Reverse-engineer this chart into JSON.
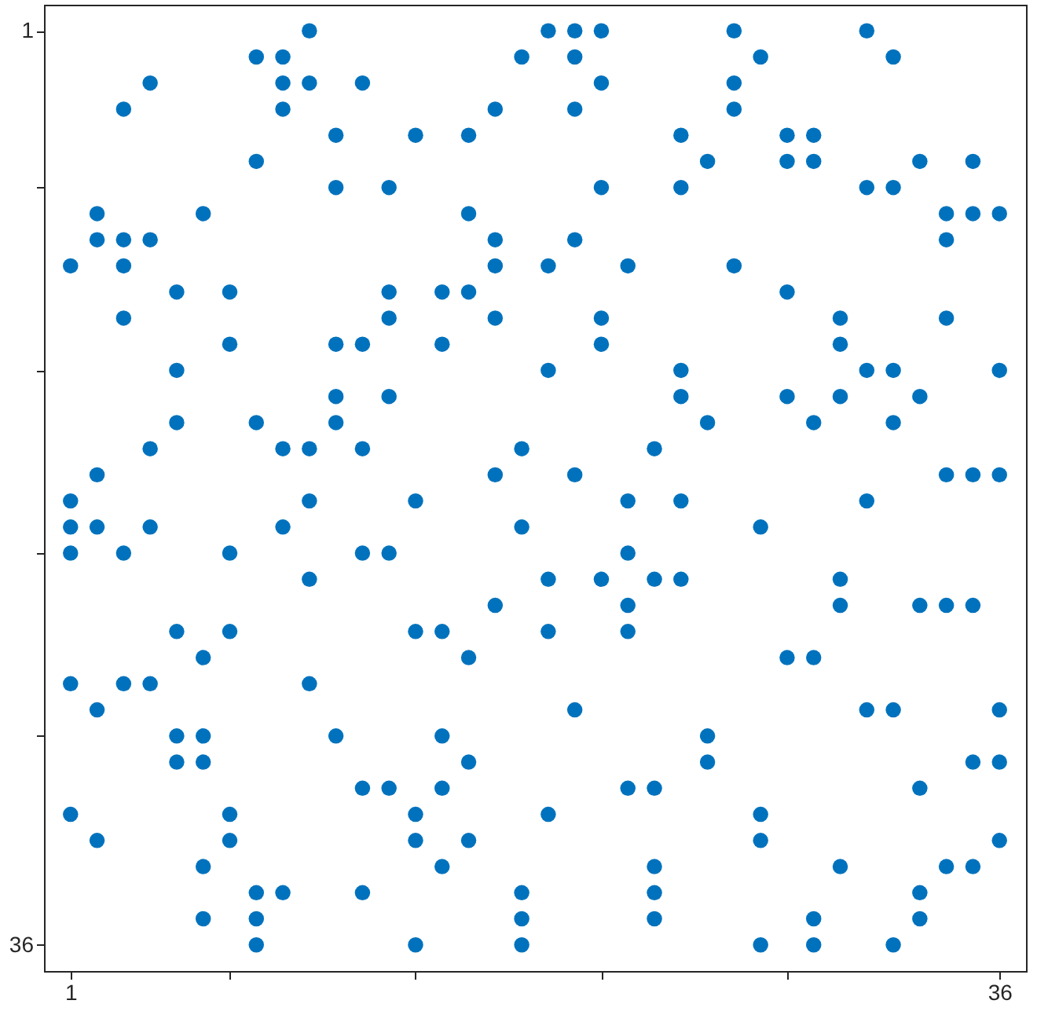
{
  "chart_data": {
    "type": "scatter",
    "marker": "circle",
    "grid": false,
    "xlim": [
      0,
      37
    ],
    "ylim": [
      37,
      0
    ],
    "xticks": [
      1,
      {
        "value": 7,
        "label": null
      },
      {
        "value": 14,
        "label": null
      },
      {
        "value": 21,
        "label": null
      },
      {
        "value": 28,
        "label": null
      },
      36
    ],
    "yticks": [
      1,
      {
        "value": 7,
        "label": null
      },
      {
        "value": 14,
        "label": null
      },
      {
        "value": 21,
        "label": null
      },
      {
        "value": 28,
        "label": null
      },
      36
    ],
    "series": [
      {
        "color": "#0072bd",
        "x": [
          10,
          19,
          20,
          21,
          26,
          31,
          8,
          9,
          18,
          20,
          27,
          32,
          4,
          9,
          10,
          12,
          21,
          26,
          3,
          9,
          17,
          20,
          26,
          11,
          14,
          16,
          24,
          28,
          29,
          8,
          25,
          28,
          29,
          33,
          35,
          11,
          13,
          21,
          24,
          31,
          32,
          2,
          6,
          16,
          34,
          35,
          36,
          2,
          3,
          4,
          17,
          20,
          34,
          1,
          3,
          17,
          19,
          22,
          26,
          5,
          7,
          13,
          15,
          16,
          28,
          3,
          13,
          17,
          21,
          30,
          34,
          7,
          11,
          12,
          15,
          21,
          30,
          5,
          19,
          24,
          31,
          32,
          36,
          11,
          13,
          24,
          28,
          30,
          33,
          5,
          8,
          11,
          25,
          29,
          32,
          4,
          9,
          10,
          12,
          18,
          23,
          2,
          17,
          20,
          34,
          35,
          36,
          1,
          10,
          14,
          22,
          24,
          31,
          1,
          2,
          4,
          9,
          18,
          27,
          1,
          3,
          7,
          12,
          13,
          22,
          10,
          19,
          21,
          23,
          24,
          30,
          17,
          22,
          30,
          33,
          34,
          35,
          5,
          7,
          14,
          15,
          19,
          22,
          6,
          16,
          28,
          29,
          1,
          3,
          4,
          10,
          2,
          20,
          31,
          32,
          36,
          5,
          6,
          11,
          15,
          25,
          5,
          6,
          16,
          25,
          35,
          36,
          12,
          13,
          15,
          22,
          23,
          33,
          1,
          7,
          14,
          19,
          27,
          2,
          7,
          14,
          16,
          27,
          36,
          6,
          15,
          23,
          30,
          34,
          35,
          8,
          9,
          12,
          18,
          23,
          33,
          6,
          8,
          18,
          23,
          29,
          33,
          8,
          14,
          18,
          27,
          29,
          32
        ],
        "values": [
          1,
          1,
          1,
          1,
          1,
          1,
          2,
          2,
          2,
          2,
          2,
          2,
          3,
          3,
          3,
          3,
          3,
          3,
          4,
          4,
          4,
          4,
          4,
          5,
          5,
          5,
          5,
          5,
          5,
          6,
          6,
          6,
          6,
          6,
          6,
          7,
          7,
          7,
          7,
          7,
          7,
          8,
          8,
          8,
          8,
          8,
          8,
          9,
          9,
          9,
          9,
          9,
          9,
          10,
          10,
          10,
          10,
          10,
          10,
          11,
          11,
          11,
          11,
          11,
          11,
          12,
          12,
          12,
          12,
          12,
          12,
          13,
          13,
          13,
          13,
          13,
          13,
          14,
          14,
          14,
          14,
          14,
          14,
          15,
          15,
          15,
          15,
          15,
          15,
          16,
          16,
          16,
          16,
          16,
          16,
          17,
          17,
          17,
          17,
          17,
          17,
          18,
          18,
          18,
          18,
          18,
          18,
          19,
          19,
          19,
          19,
          19,
          19,
          20,
          20,
          20,
          20,
          20,
          20,
          21,
          21,
          21,
          21,
          21,
          21,
          22,
          22,
          22,
          22,
          22,
          22,
          23,
          23,
          23,
          23,
          23,
          23,
          24,
          24,
          24,
          24,
          24,
          24,
          25,
          25,
          25,
          25,
          26,
          26,
          26,
          26,
          27,
          27,
          27,
          27,
          27,
          28,
          28,
          28,
          28,
          28,
          29,
          29,
          29,
          29,
          29,
          29,
          30,
          30,
          30,
          30,
          30,
          30,
          31,
          31,
          31,
          31,
          31,
          32,
          32,
          32,
          32,
          32,
          32,
          33,
          33,
          33,
          33,
          33,
          33,
          34,
          34,
          34,
          34,
          34,
          34,
          35,
          35,
          35,
          35,
          35,
          35,
          36,
          36,
          36,
          36,
          36,
          36
        ]
      }
    ]
  }
}
